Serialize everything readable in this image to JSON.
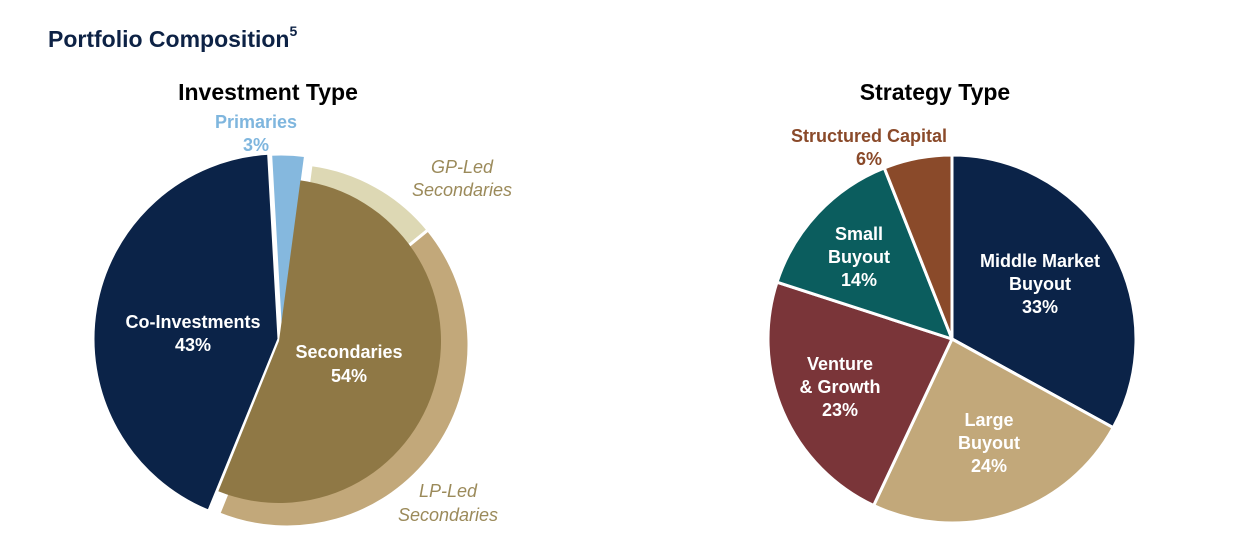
{
  "page": {
    "title": "Portfolio Composition",
    "footnote": "5"
  },
  "chart_data": [
    {
      "type": "pie",
      "title": "Investment Type",
      "slices": [
        {
          "label": "Co-Investments",
          "value": 43,
          "display": "43%",
          "color": "#0b2348",
          "label_color": "#ffffff"
        },
        {
          "label": "Primaries",
          "value": 3,
          "display": "3%",
          "color": "#85b8de",
          "label_color": "#7fb6de"
        },
        {
          "label": "Secondaries",
          "value": 54,
          "display": "54%",
          "color": "#8f7845",
          "label_color": "#ffffff",
          "sub_slices": [
            {
              "label": "GP-Led Secondaries",
              "share_of_total": 12,
              "color": "#ddd8b4",
              "label_color": "#9b8a5a"
            },
            {
              "label": "LP-Led Secondaries",
              "share_of_total": 42,
              "color": "#c2a87a",
              "label_color": "#9b8a5a"
            }
          ]
        }
      ]
    },
    {
      "type": "pie",
      "title": "Strategy Type",
      "slices": [
        {
          "label": "Middle Market Buyout",
          "value": 33,
          "display": "33%",
          "color": "#0b2348",
          "label_color": "#ffffff"
        },
        {
          "label": "Large Buyout",
          "value": 24,
          "display": "24%",
          "color": "#c2a87a",
          "label_color": "#ffffff"
        },
        {
          "label": "Venture & Growth",
          "value": 23,
          "display": "23%",
          "color": "#7a3539",
          "label_color": "#ffffff"
        },
        {
          "label": "Small Buyout",
          "value": 14,
          "display": "14%",
          "color": "#0b5d5e",
          "label_color": "#ffffff"
        },
        {
          "label": "Structured Capital",
          "value": 6,
          "display": "6%",
          "color": "#8a4a2a",
          "label_color": "#8a4a2a"
        }
      ]
    }
  ]
}
